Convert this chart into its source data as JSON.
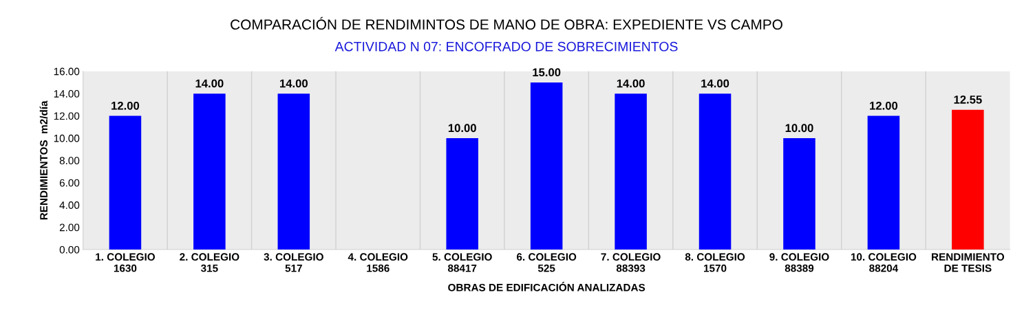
{
  "chart_data": {
    "type": "bar",
    "title": "COMPARACIÓN DE RENDIMINTOS DE MANO DE OBRA: EXPEDIENTE VS CAMPO",
    "subtitle": "ACTIVIDAD N 07: ENCOFRADO DE SOBRECIMIENTOS",
    "xlabel": "OBRAS DE EDIFICACIÓN ANALIZADAS",
    "ylabel": "RENDIMIENTOS  m2/día",
    "categories": [
      "1. COLEGIO\n1630",
      "2. COLEGIO\n315",
      "3. COLEGIO\n517",
      "4. COLEGIO\n1586",
      "5. COLEGIO\n88417",
      "6. COLEGIO\n525",
      "7. COLEGIO\n88393",
      "8. COLEGIO\n1570",
      "9. COLEGIO\n88389",
      "10. COLEGIO\n88204",
      "RENDIMIENTO\nDE TESIS"
    ],
    "values": [
      12,
      14,
      14,
      null,
      10,
      15,
      14,
      14,
      10,
      12,
      12.55
    ],
    "colors": [
      "#0000ff",
      "#0000ff",
      "#0000ff",
      "#0000ff",
      "#0000ff",
      "#0000ff",
      "#0000ff",
      "#0000ff",
      "#0000ff",
      "#0000ff",
      "#ff0000"
    ],
    "value_labels": [
      "12.00",
      "14.00",
      "14.00",
      null,
      "10.00",
      "15.00",
      "14.00",
      "14.00",
      "10.00",
      "12.00",
      "12.55"
    ],
    "ylim": [
      0,
      16
    ],
    "yticks": [
      {
        "value": 0,
        "label": "0.00"
      },
      {
        "value": 2,
        "label": "2.00"
      },
      {
        "value": 4,
        "label": "4.00"
      },
      {
        "value": 6,
        "label": "6.00"
      },
      {
        "value": 8,
        "label": "8.00"
      },
      {
        "value": 10,
        "label": "10.00"
      },
      {
        "value": 12,
        "label": "12.00"
      },
      {
        "value": 14,
        "label": "14.00"
      },
      {
        "value": 16,
        "label": "16.00"
      }
    ],
    "grid": false,
    "legend": false
  }
}
